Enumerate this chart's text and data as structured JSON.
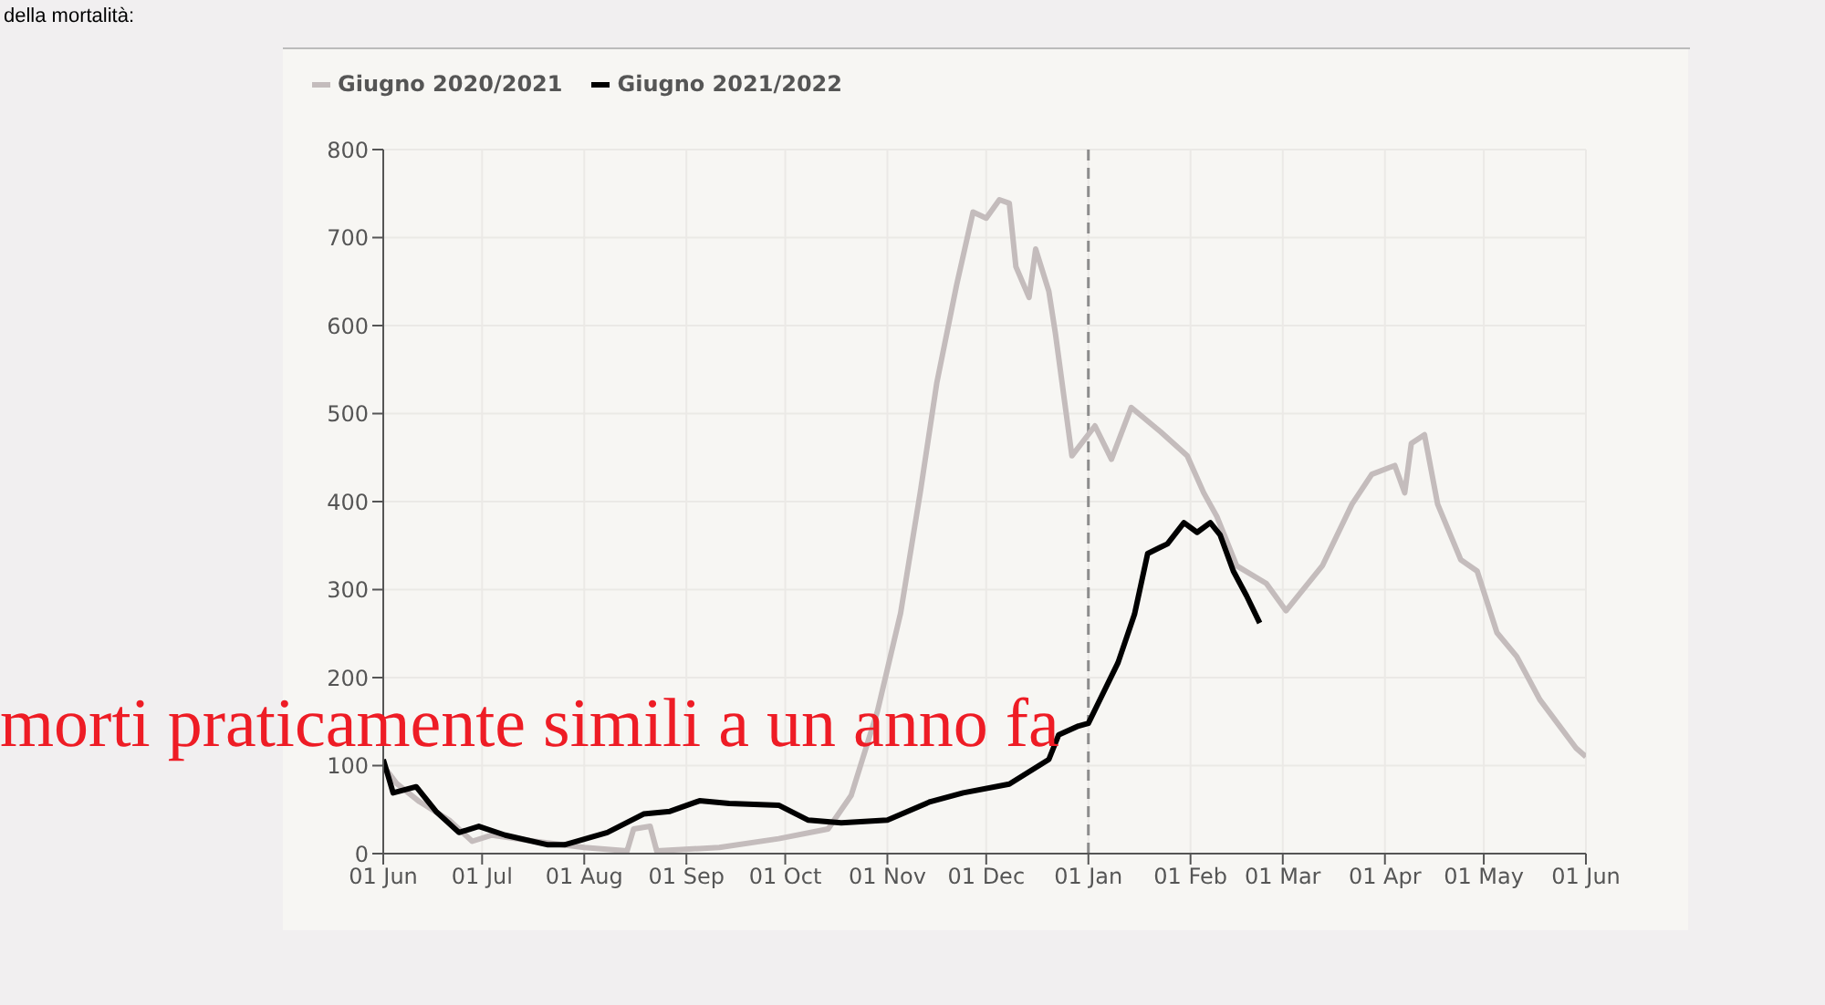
{
  "chart_data": {
    "type": "line",
    "annotations": [
      "della mortalità:",
      "morti praticamente simili a un anno fa"
    ],
    "series": [
      {
        "name": "Giugno 2020/2021",
        "color": "#c4bcbc",
        "x": [
          "2020-06-01",
          "2020-06-05",
          "2020-06-12",
          "2020-06-21",
          "2020-06-28",
          "2020-07-04",
          "2020-07-17",
          "2020-08-01",
          "2020-08-14",
          "2020-08-16",
          "2020-08-21",
          "2020-08-23",
          "2020-09-11",
          "2020-09-29",
          "2020-10-14",
          "2020-10-21",
          "2020-10-29",
          "2020-11-05",
          "2020-11-11",
          "2020-11-16",
          "2020-11-22",
          "2020-11-27",
          "2020-12-01",
          "2020-12-05",
          "2020-12-08",
          "2020-12-10",
          "2020-12-14",
          "2020-12-16",
          "2020-12-20",
          "2020-12-22",
          "2020-12-27",
          "2021-01-03",
          "2021-01-08",
          "2021-01-14",
          "2021-01-23",
          "2021-01-31",
          "2021-02-05",
          "2021-02-09",
          "2021-02-15",
          "2021-02-24",
          "2021-03-02",
          "2021-03-13",
          "2021-03-22",
          "2021-03-28",
          "2021-04-04",
          "2021-04-07",
          "2021-04-09",
          "2021-04-13",
          "2021-04-17",
          "2021-04-24",
          "2021-04-29",
          "2021-05-05",
          "2021-05-11",
          "2021-05-18",
          "2021-05-29",
          "2021-06-01"
        ],
        "values": [
          100,
          80,
          59,
          38,
          14,
          21,
          14,
          7,
          3,
          28,
          31,
          3,
          7,
          17,
          28,
          66,
          162,
          273,
          411,
          535,
          646,
          729,
          722,
          743,
          739,
          667,
          632,
          687,
          639,
          591,
          452,
          486,
          448,
          507,
          479,
          452,
          410,
          383,
          327,
          307,
          276,
          327,
          397,
          431,
          441,
          410,
          466,
          476,
          397,
          334,
          321,
          251,
          224,
          175,
          120,
          110
        ]
      },
      {
        "name": "Giugno 2021/2022",
        "color": "#000000",
        "x": [
          "2020-06-01",
          "2020-06-04",
          "2020-06-11",
          "2020-06-17",
          "2020-06-24",
          "2020-06-30",
          "2020-07-08",
          "2020-07-21",
          "2020-07-26",
          "2020-08-08",
          "2020-08-19",
          "2020-08-27",
          "2020-09-05",
          "2020-09-14",
          "2020-09-29",
          "2020-10-08",
          "2020-10-18",
          "2020-11-01",
          "2020-11-14",
          "2020-11-24",
          "2020-12-08",
          "2020-12-20",
          "2020-12-23",
          "2020-12-29",
          "2021-01-01",
          "2021-01-10",
          "2021-01-15",
          "2021-01-19",
          "2021-01-25",
          "2021-01-30",
          "2021-02-03",
          "2021-02-07",
          "2021-02-10",
          "2021-02-14",
          "2021-02-18",
          "2021-02-22"
        ],
        "values": [
          107,
          69,
          76,
          48,
          24,
          31,
          21,
          10,
          10,
          24,
          45,
          48,
          60,
          57,
          55,
          38,
          35,
          38,
          59,
          69,
          79,
          107,
          135,
          145,
          148,
          217,
          272,
          341,
          352,
          376,
          365,
          376,
          362,
          321,
          293,
          262
        ]
      }
    ],
    "xlim": [
      "2020-06-01",
      "2021-06-01"
    ],
    "xticks": [
      {
        "value": "2020-06-01",
        "label": "01 Jun"
      },
      {
        "value": "2020-07-01",
        "label": "01 Jul"
      },
      {
        "value": "2020-08-01",
        "label": "01 Aug"
      },
      {
        "value": "2020-09-01",
        "label": "01 Sep"
      },
      {
        "value": "2020-10-01",
        "label": "01 Oct"
      },
      {
        "value": "2020-11-01",
        "label": "01 Nov"
      },
      {
        "value": "2020-12-01",
        "label": "01 Dec"
      },
      {
        "value": "2021-01-01",
        "label": "01 Jan"
      },
      {
        "value": "2021-02-01",
        "label": "01 Feb"
      },
      {
        "value": "2021-03-01",
        "label": "01 Mar"
      },
      {
        "value": "2021-04-01",
        "label": "01 Apr"
      },
      {
        "value": "2021-05-01",
        "label": "01 May"
      },
      {
        "value": "2021-06-01",
        "label": "01 Jun"
      }
    ],
    "ylim": [
      0,
      800
    ],
    "yticks": [
      0,
      100,
      200,
      300,
      400,
      500,
      600,
      700,
      800
    ],
    "ref_lines": [
      {
        "axis": "x",
        "value": "2021-01-01",
        "color": "#8c8c8c",
        "line_style": "dashed"
      }
    ],
    "grid": true,
    "legend": "top left",
    "marker": "none",
    "line_style": "solid"
  }
}
